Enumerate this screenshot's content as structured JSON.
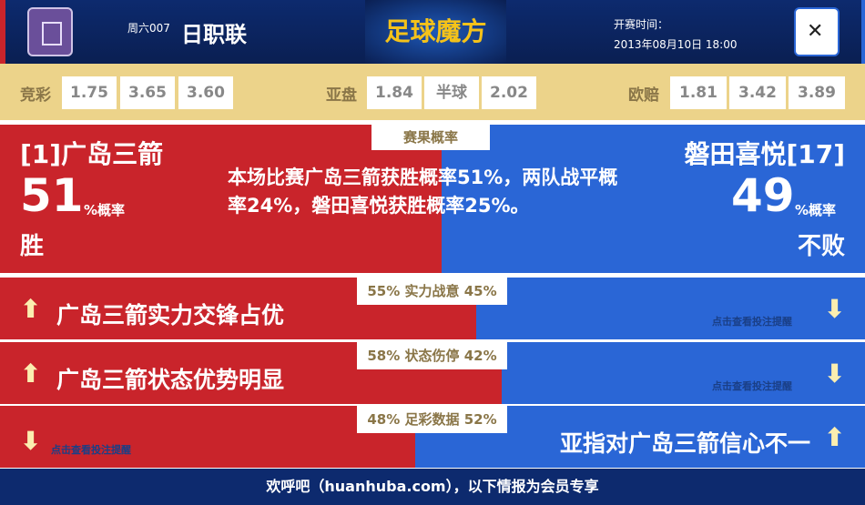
{
  "header": {
    "week": "周六007",
    "league": "日职联",
    "brand": "足球魔方",
    "time_label": "开赛时间：",
    "time": "2013年08月10日 18:00",
    "home_logo": "sanfrecce-hiroshima-logo",
    "away_logo": "jubilo-iwata-logo"
  },
  "odds": {
    "jc_label": "竞彩",
    "jc": [
      "1.75",
      "3.65",
      "3.60"
    ],
    "yp_label": "亚盘",
    "yp": [
      "1.84",
      "半球",
      "2.02"
    ],
    "oz_label": "欧赔",
    "oz": [
      "1.81",
      "3.42",
      "3.89"
    ]
  },
  "result": {
    "tab": "赛果概率",
    "home_name": "[1]广岛三箭",
    "home_pct": "51",
    "pct_unit": "%概率",
    "home_result": "胜",
    "away_name": "磐田喜悦[17]",
    "away_pct": "49",
    "away_result": "不败",
    "description": "本场比赛广岛三箭获胜概率51%，两队战平概率24%，磐田喜悦获胜概率25%。"
  },
  "rows": [
    {
      "label": "55% 实力战意 45%",
      "home_share": 55,
      "text": "广岛三箭实力交锋占优",
      "hint": "点击查看投注提醒",
      "side": "home"
    },
    {
      "label": "58% 状态伤停 42%",
      "home_share": 58,
      "text": "广岛三箭状态优势明显",
      "hint": "点击查看投注提醒",
      "side": "home"
    },
    {
      "label": "48% 足彩数据 52%",
      "home_share": 48,
      "text": "亚指对广岛三箭信心不一",
      "hint": "点击查看投注提醒",
      "side": "away"
    }
  ],
  "footer": "欢呼吧（huanhuba.com），以下情报为会员专享",
  "colors": {
    "home": "#c9242b",
    "away": "#2a66d6",
    "odds_bg": "#ecd38a"
  }
}
